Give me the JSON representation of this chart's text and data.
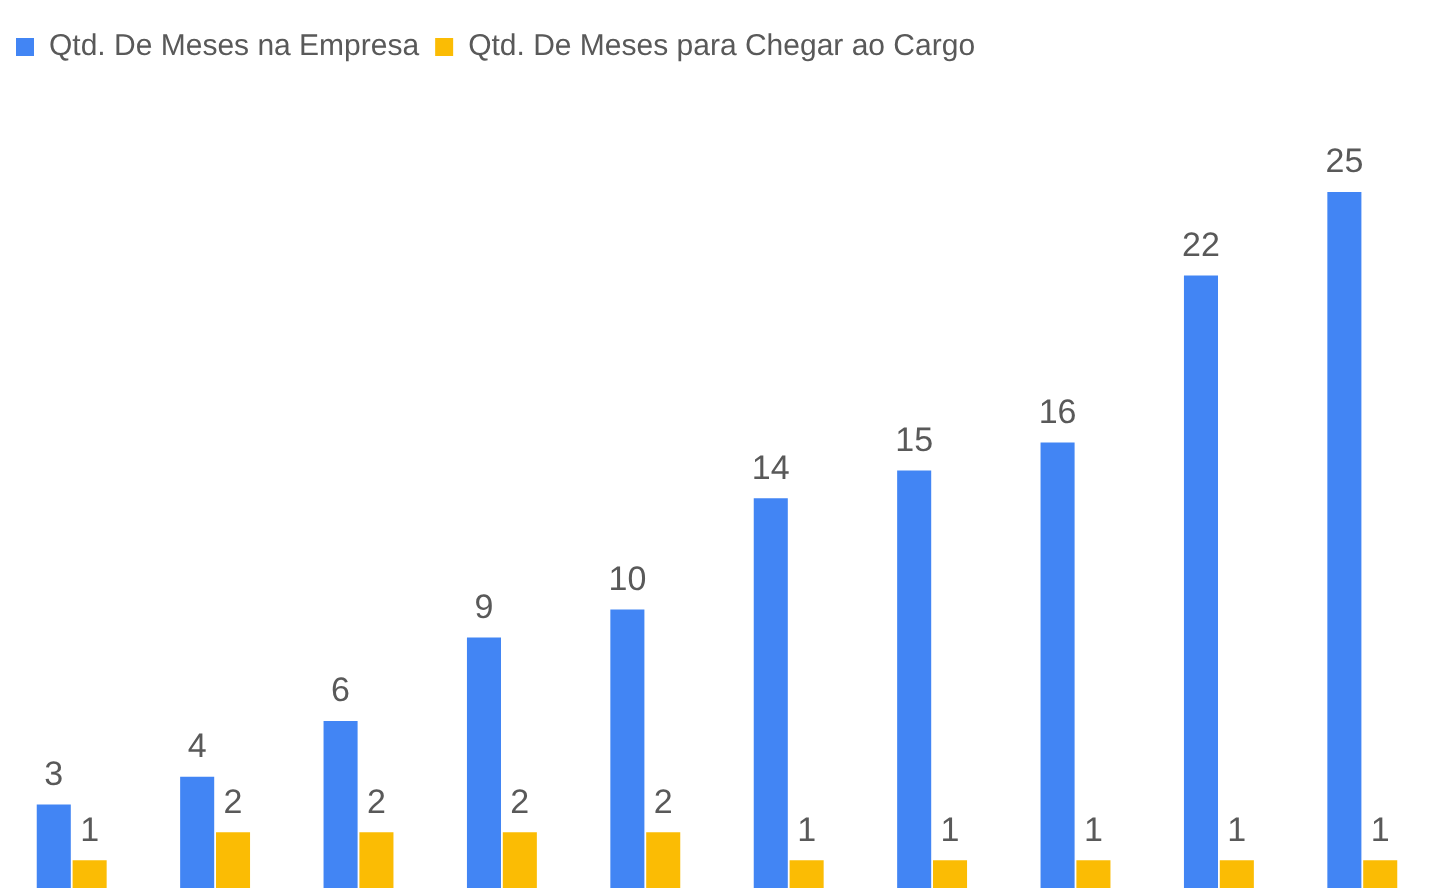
{
  "chart_data": {
    "type": "bar",
    "categories": [
      null,
      null,
      null,
      null,
      null,
      null,
      null,
      null,
      null,
      null
    ],
    "series": [
      {
        "name": "Qtd. De Meses na Empresa",
        "color": "#4285f4",
        "values": [
          3,
          4,
          6,
          9,
          10,
          14,
          15,
          16,
          22,
          25
        ]
      },
      {
        "name": "Qtd. De Meses para Chegar ao Cargo",
        "color": "#fbbc04",
        "values": [
          1,
          2,
          2,
          2,
          2,
          1,
          1,
          1,
          1,
          1
        ]
      }
    ],
    "data_labels": true,
    "legend": "top left"
  }
}
